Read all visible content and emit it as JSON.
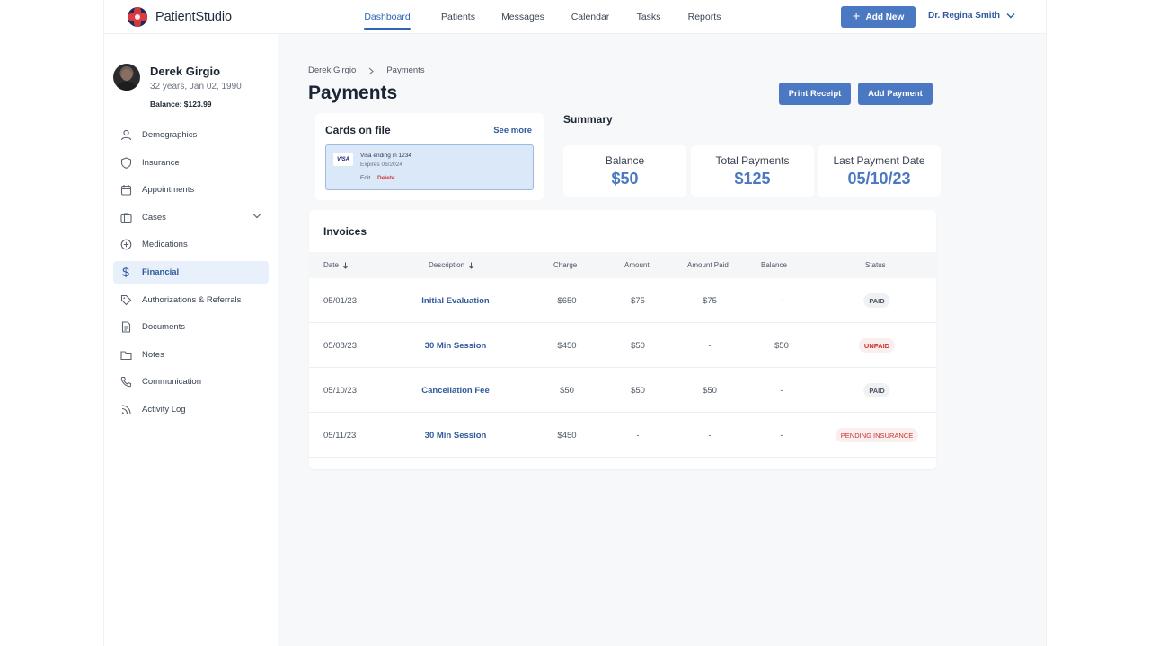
{
  "app": {
    "name": "PatientStudio",
    "nav": [
      "Dashboard",
      "Patients",
      "Messages",
      "Calendar",
      "Tasks",
      "Reports"
    ],
    "active_nav": "Dashboard",
    "add_new_label": "Add New",
    "user": "Dr. Regina Smith",
    "brand_colors": {
      "primary": "#4a78c2",
      "logo_red": "#e03a3e",
      "logo_navy": "#1e2a5a"
    }
  },
  "patient": {
    "name": "Derek Girgio",
    "age_dob": "32 years, Jan 02, 1990",
    "balance": "Balance: $123.99"
  },
  "sidebar": {
    "items": [
      {
        "label": "Demographics",
        "icon": "person-icon"
      },
      {
        "label": "Insurance",
        "icon": "shield-icon"
      },
      {
        "label": "Appointments",
        "icon": "calendar-icon"
      },
      {
        "label": "Cases",
        "icon": "briefcase-icon"
      },
      {
        "label": "Medications",
        "icon": "plus-circle-icon"
      },
      {
        "label": "Financial",
        "icon": "dollar-icon"
      },
      {
        "label": "Authorizations & Referrals",
        "icon": "tag-icon"
      },
      {
        "label": "Documents",
        "icon": "document-icon"
      },
      {
        "label": "Notes",
        "icon": "folder-icon"
      },
      {
        "label": "Communication",
        "icon": "phone-icon"
      },
      {
        "label": "Activity Log",
        "icon": "rss-icon"
      }
    ],
    "active": "Financial"
  },
  "page": {
    "breadcrumb": [
      "Derek Girgio",
      "Payments"
    ],
    "title": "Payments",
    "print_receipt": "Print Receipt",
    "add_payment": "Add Payment"
  },
  "cards_on_file": {
    "title": "Cards on file",
    "see_more": "See more",
    "card": {
      "brand": "VISA",
      "line1": "Visa ending in 1234",
      "line2": "Expires 06/2024",
      "edit": "Edit",
      "delete": "Delete"
    }
  },
  "summary": {
    "title": "Summary",
    "items": [
      {
        "label": "Balance",
        "value": "$50"
      },
      {
        "label": "Total Payments",
        "value": "$125"
      },
      {
        "label": "Last Payment Date",
        "value": "05/10/23"
      }
    ]
  },
  "invoices": {
    "title": "Invoices",
    "columns": [
      "Date",
      "Description",
      "Charge",
      "Amount",
      "Amount Paid",
      "Balance",
      "Status"
    ],
    "rows": [
      {
        "date": "05/01/23",
        "description": "Initial Evaluation",
        "charge": "$650",
        "amount": "$75",
        "amount_paid": "$75",
        "balance": "-",
        "status": "PAID"
      },
      {
        "date": "05/08/23",
        "description": "30 Min Session",
        "charge": "$450",
        "amount": "$50",
        "amount_paid": "-",
        "balance": "$50",
        "status": "UNPAID"
      },
      {
        "date": "05/10/23",
        "description": "Cancellation Fee",
        "charge": "$50",
        "amount": "$50",
        "amount_paid": "$50",
        "balance": "-",
        "status": "PAID"
      },
      {
        "date": "05/11/23",
        "description": "30 Min Session",
        "charge": "$450",
        "amount": "-",
        "amount_paid": "-",
        "balance": "-",
        "status": "PENDING INSURANCE"
      }
    ]
  }
}
